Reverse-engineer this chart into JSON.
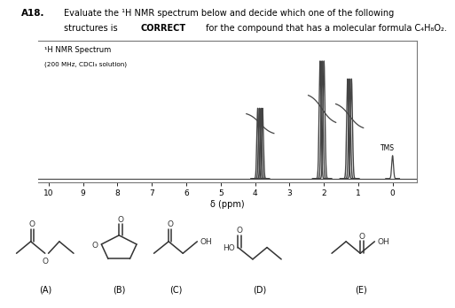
{
  "title_text": "A18.",
  "question_line1": "Evaluate the ¹H NMR spectrum below and decide which one of the following",
  "question_line2": "structures is BOLDCORRECT for the compound that has a molecular formula C₄H₈O₂.",
  "nmr_label": "¹H NMR Spectrum",
  "nmr_sublabel": "(200 MHz, CDCl₃ solution)",
  "tms_label": "TMS",
  "xaxis_label": "δ (ppm)",
  "bg_color": "#ffffff",
  "peak_color": "#444444",
  "structure_labels": [
    "(A)",
    "(B)",
    "(C)",
    "(D)",
    "(E)"
  ]
}
